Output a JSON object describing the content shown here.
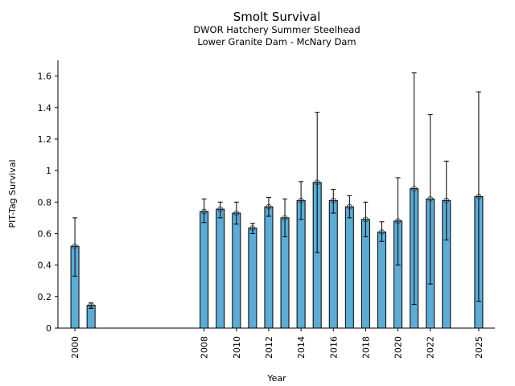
{
  "chart_data": {
    "type": "bar",
    "title": "Smolt Survival",
    "subtitle": [
      "DWOR Hatchery Summer Steelhead",
      "Lower Granite Dam - McNary Dam"
    ],
    "xlabel": "Year",
    "ylabel": "PIT-Tag Survival",
    "xlim": [
      1998.95,
      2026.0
    ],
    "ylim": [
      0,
      1.7
    ],
    "grid": false,
    "bar_color": "#5bacd6",
    "xticks": [
      2000,
      2008,
      2010,
      2012,
      2014,
      2016,
      2018,
      2020,
      2022,
      2025
    ],
    "xtick_labels": [
      "2000",
      "2008",
      "2010",
      "2012",
      "2014",
      "2016",
      "2018",
      "2020",
      "2022",
      "2025"
    ],
    "yticks": [
      0,
      0.2,
      0.4,
      0.6,
      0.8,
      1,
      1.2,
      1.4,
      1.6
    ],
    "ytick_labels": [
      "0",
      "0.2",
      "0.4",
      "0.6",
      "0.8",
      "1",
      "1.2",
      "1.4",
      "1.6"
    ],
    "x": [
      2000,
      2001,
      2008,
      2009,
      2010,
      2011,
      2012,
      2013,
      2014,
      2015,
      2016,
      2017,
      2018,
      2019,
      2020,
      2021,
      2022,
      2023,
      2025
    ],
    "values": [
      0.52,
      0.145,
      0.74,
      0.755,
      0.73,
      0.635,
      0.77,
      0.7,
      0.81,
      0.925,
      0.81,
      0.77,
      0.69,
      0.61,
      0.68,
      0.885,
      0.82,
      0.81,
      0.835
    ],
    "err_upper": [
      0.7,
      0.16,
      0.82,
      0.8,
      0.8,
      0.665,
      0.83,
      0.82,
      0.93,
      1.37,
      0.88,
      0.84,
      0.8,
      0.675,
      0.955,
      1.62,
      1.355,
      1.06,
      1.5
    ],
    "err_lower": [
      0.33,
      0.125,
      0.67,
      0.7,
      0.66,
      0.6,
      0.71,
      0.58,
      0.69,
      0.48,
      0.73,
      0.7,
      0.58,
      0.55,
      0.4,
      0.15,
      0.28,
      0.56,
      0.17
    ]
  }
}
